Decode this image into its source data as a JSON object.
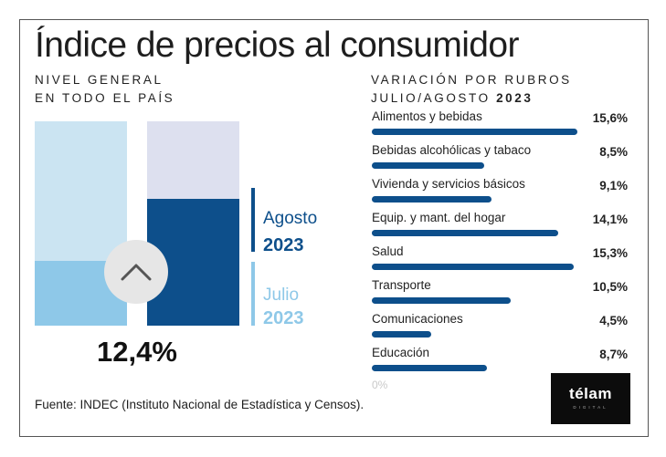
{
  "title": "Índice de precios al consumidor",
  "left_caption": {
    "line1": "NIVEL GENERAL",
    "line2": "EN TODO EL PAÍS"
  },
  "right_caption": {
    "line1": "VARIACIÓN POR RUBROS",
    "line2_prefix": "JULIO/AGOSTO ",
    "line2_year": "2023"
  },
  "headline_value": "12,4%",
  "icon": "chevron-up-icon",
  "legend": [
    {
      "name": "Agosto",
      "year": "2023",
      "color": "#0d4f8b"
    },
    {
      "name": "Julio",
      "year": "2023",
      "color": "#8ec8e8"
    }
  ],
  "colors": {
    "julio_bar": "#8ec8e8",
    "julio_bg": "#cbe4f2",
    "agosto_bar": "#0d4f8b",
    "agosto_bg": "#dde0ef",
    "rubro_bar": "#0d4f8b"
  },
  "chart_data": [
    {
      "type": "bar",
      "title": "NIVEL GENERAL EN TODO EL PAÍS",
      "categories": [
        "Julio 2023",
        "Agosto 2023"
      ],
      "values": [
        6.3,
        12.4
      ],
      "ylim": [
        0,
        20
      ],
      "headline_label": "12,4%"
    },
    {
      "type": "bar",
      "orientation": "horizontal",
      "title": "VARIACIÓN POR RUBROS JULIO/AGOSTO 2023",
      "categories": [
        "Alimentos y bebidas",
        "Bebidas alcohólicas y tabaco",
        "Vivienda y servicios básicos",
        "Equip. y mant. del hogar",
        "Salud",
        "Transporte",
        "Comunicaciones",
        "Educación"
      ],
      "values": [
        15.6,
        8.5,
        9.1,
        14.1,
        15.3,
        10.5,
        4.5,
        8.7
      ],
      "labels": [
        "15,6%",
        "8,5%",
        "9,1%",
        "14,1%",
        "15,3%",
        "10,5%",
        "4,5%",
        "8,7%"
      ],
      "axis_min_label": "0%",
      "xlim": [
        0,
        16
      ]
    }
  ],
  "source": "Fuente: INDEC (Instituto Nacional de Estadística y Censos).",
  "logo": {
    "text": "télam",
    "sub": "DIGITAL"
  }
}
